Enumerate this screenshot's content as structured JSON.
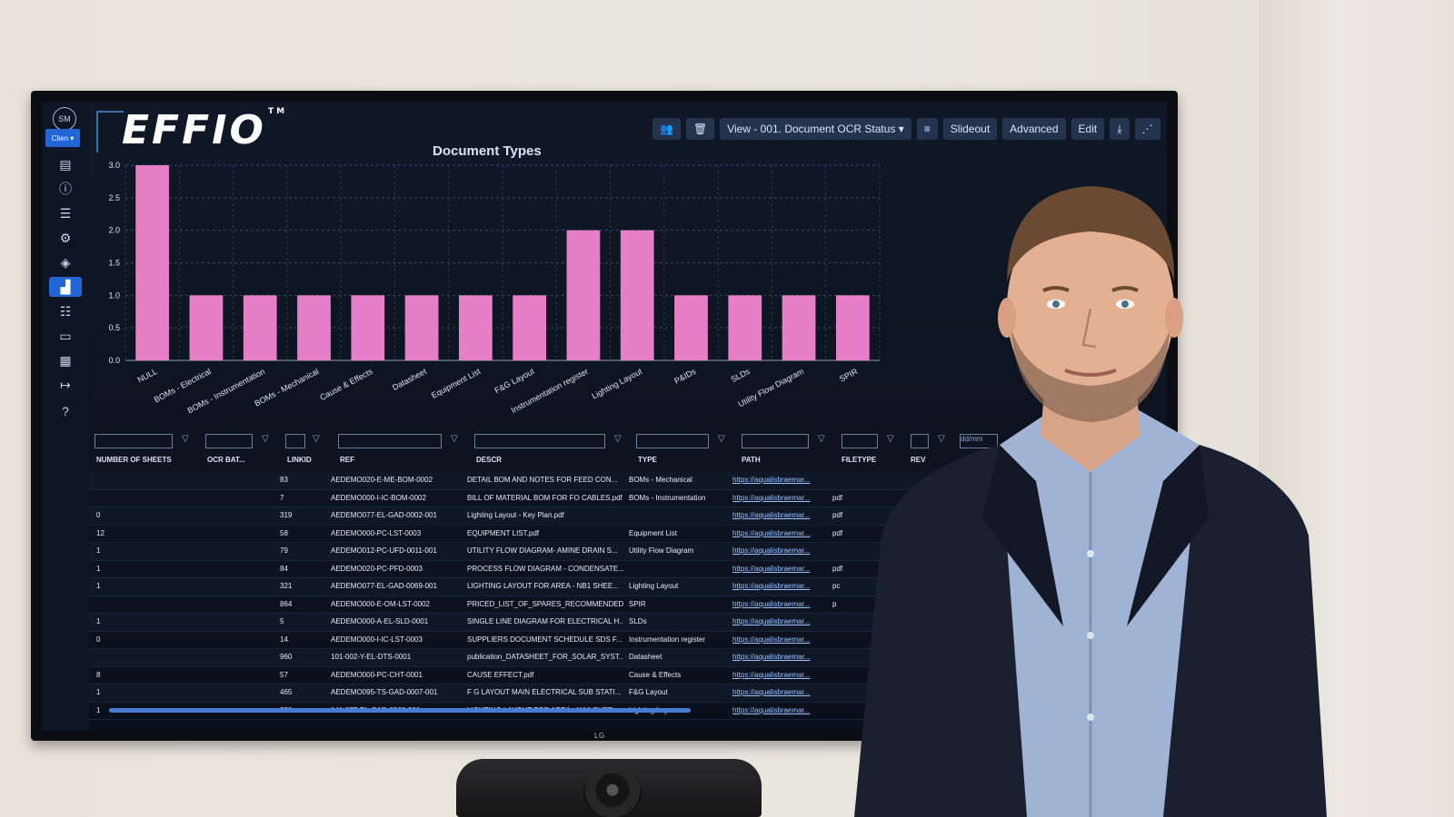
{
  "app": {
    "logo": "EFFIO",
    "logo_tm": "TM",
    "avatar": "SM",
    "client_label": "Clien",
    "tv_brand": "LG"
  },
  "toolbar": {
    "view_select": "View - 001. Document OCR Status",
    "slideout": "Slideout",
    "advanced": "Advanced",
    "edit": "Edit"
  },
  "sidebar": {
    "icons": [
      "document-icon",
      "info-icon",
      "list-icon",
      "settings-icon",
      "diamond-icon",
      "chart-icon",
      "filter-icon",
      "briefcase-icon",
      "layout-icon",
      "logout-icon",
      "help-icon"
    ],
    "active": "chart-icon"
  },
  "chart_data": {
    "type": "bar",
    "title": "Document Types",
    "categories": [
      "NULL",
      "BOMs - Electrical",
      "BOMs - Instrumentation",
      "BOMs - Mechanical",
      "Cause & Effects",
      "Datasheet",
      "Equipment List",
      "F&G Layout",
      "Instrumentation register",
      "Lighting Layout",
      "P&IDs",
      "SLDs",
      "Utility Flow Diagram",
      "SPIR"
    ],
    "values": [
      3,
      1,
      1,
      1,
      1,
      1,
      1,
      1,
      2,
      2,
      1,
      1,
      1,
      1
    ],
    "ylim": [
      0,
      3
    ],
    "yticks": [
      "3.0",
      "2.5",
      "2.0",
      "1.5",
      "1.0",
      "0.5",
      "0.0"
    ],
    "bar_color": "#e67fc7",
    "grid": true
  },
  "table": {
    "columns": [
      "NUMBER OF SHEETS",
      "OCR BAT...",
      "LINKID",
      "REF",
      "DESCR",
      "TYPE",
      "PATH",
      "FILETYPE",
      "REV"
    ],
    "date_placeholder": "dd/mm",
    "rows": [
      [
        "",
        "",
        "83",
        "AEDEMO020-E-ME-BOM-0002",
        "DETAIL BOM AND NOTES FOR FEED CON...",
        "BOMs - Mechanical",
        "https://aqualisbraemar...",
        ""
      ],
      [
        "",
        "",
        "7",
        "AEDEMO000-I-IC-BOM-0002",
        "BILL OF MATERIAL BOM FOR FO CABLES.pdf",
        "BOMs - Instrumentation",
        "https://aqualisbraemar...",
        "pdf"
      ],
      [
        "0",
        "",
        "319",
        "AEDEMO077-EL-GAD-0002-001",
        "Lighting Layout - Key Plan.pdf",
        "",
        "https://aqualisbraemar...",
        "pdf"
      ],
      [
        "12",
        "",
        "58",
        "AEDEMO000-PC-LST-0003",
        "EQUIPMENT LIST.pdf",
        "Equipment List",
        "https://aqualisbraemar...",
        "pdf"
      ],
      [
        "1",
        "",
        "79",
        "AEDEMO012-PC-UFD-0011-001",
        "UTILITY FLOW DIAGRAM- AMINE DRAIN S...",
        "Utility Flow Diagram",
        "https://aqualisbraemar...",
        ""
      ],
      [
        "1",
        "",
        "84",
        "AEDEMO020-PC-PFD-0003",
        "PROCESS FLOW DIAGRAM - CONDENSATE...",
        "",
        "https://aqualisbraemar...",
        "pdf"
      ],
      [
        "1",
        "",
        "321",
        "AEDEMO077-EL-GAD-0069-001",
        "LIGHTING LAYOUT FOR AREA - NB1 SHEE...",
        "Lighting Layout",
        "https://aqualisbraemar...",
        "pc"
      ],
      [
        "",
        "",
        "864",
        "AEDEMO000-E-OM-LST-0002",
        "PRICED_LIST_OF_SPARES_RECOMMENDED...",
        "SPIR",
        "https://aqualisbraemar...",
        "p"
      ],
      [
        "1",
        "",
        "5",
        "AEDEMO000-A-EL-SLD-0001",
        "SINGLE LINE DIAGRAM FOR ELECTRICAL H...",
        "SLDs",
        "https://aqualisbraemar...",
        ""
      ],
      [
        "0",
        "",
        "14",
        "AEDEMO000-I-IC-LST-0003",
        "SUPPLIERS DOCUMENT SCHEDULE SDS F...",
        "Instrumentation register",
        "https://aqualisbraemar...",
        ""
      ],
      [
        "",
        "",
        "960",
        "101-002-Y-EL-DTS-0001",
        "publication_DATASHEET_FOR_SOLAR_SYST...",
        "Datasheet",
        "https://aqualisbraemar...",
        ""
      ],
      [
        "8",
        "",
        "57",
        "AEDEMO000-PC-CHT-0001",
        "CAUSE EFFECT.pdf",
        "Cause & Effects",
        "https://aqualisbraemar...",
        ""
      ],
      [
        "1",
        "",
        "465",
        "AEDEMO095-TS-GAD-0007-001",
        "F G LAYOUT MAIN ELECTRICAL SUB STATI...",
        "F&G Layout",
        "https://aqualisbraemar...",
        ""
      ],
      [
        "1",
        "",
        "320",
        "141-077-EL-GAD-0068-001",
        "LIGHTING LAYOUT FOR AREA - NA1 SHEE...",
        "Lighting Layout",
        "https://aqualisbraemar...",
        ""
      ]
    ]
  }
}
